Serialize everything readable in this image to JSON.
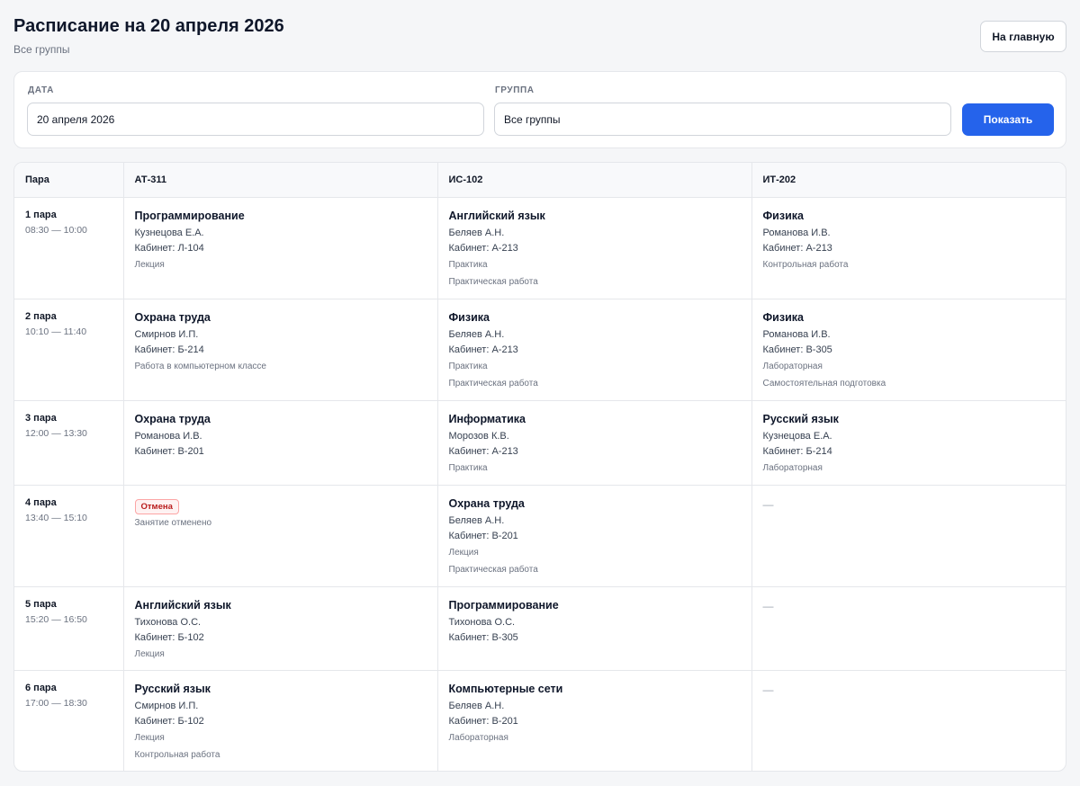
{
  "header": {
    "title": "Расписание на 20 апреля 2026",
    "subtitle": "Все группы",
    "home_label": "На главную"
  },
  "filters": {
    "date_label": "ДАТА",
    "date_value": "20 апреля 2026",
    "group_label": "ГРУППА",
    "group_value": "Все группы",
    "show_label": "Показать"
  },
  "table": {
    "columns": [
      "Пара",
      "АТ-311",
      "ИС-102",
      "ИТ-202"
    ],
    "rows": [
      {
        "pair": "1 пара",
        "time": "08:30 — 10:00",
        "cells": [
          {
            "subject": "Программирование",
            "teacher": "Кузнецова Е.А.",
            "room": "Кабинет: Л-104",
            "notes": [
              "Лекция"
            ]
          },
          {
            "subject": "Английский язык",
            "teacher": "Беляев А.Н.",
            "room": "Кабинет: А-213",
            "notes": [
              "Практика",
              "Практическая работа"
            ]
          },
          {
            "subject": "Физика",
            "teacher": "Романова И.В.",
            "room": "Кабинет: А-213",
            "notes": [
              "Контрольная работа"
            ]
          }
        ]
      },
      {
        "pair": "2 пара",
        "time": "10:10 — 11:40",
        "cells": [
          {
            "subject": "Охрана труда",
            "teacher": "Смирнов И.П.",
            "room": "Кабинет: Б-214",
            "notes": [
              "Работа в компьютерном классе"
            ]
          },
          {
            "subject": "Физика",
            "teacher": "Беляев А.Н.",
            "room": "Кабинет: А-213",
            "notes": [
              "Практика",
              "Практическая работа"
            ]
          },
          {
            "subject": "Физика",
            "teacher": "Романова И.В.",
            "room": "Кабинет: В-305",
            "notes": [
              "Лабораторная",
              "Самостоятельная подготовка"
            ]
          }
        ]
      },
      {
        "pair": "3 пара",
        "time": "12:00 — 13:30",
        "cells": [
          {
            "subject": "Охрана труда",
            "teacher": "Романова И.В.",
            "room": "Кабинет: В-201",
            "notes": []
          },
          {
            "subject": "Информатика",
            "teacher": "Морозов К.В.",
            "room": "Кабинет: А-213",
            "notes": [
              "Практика"
            ]
          },
          {
            "subject": "Русский язык",
            "teacher": "Кузнецова Е.А.",
            "room": "Кабинет: Б-214",
            "notes": [
              "Лабораторная"
            ]
          }
        ]
      },
      {
        "pair": "4 пара",
        "time": "13:40 — 15:10",
        "cells": [
          {
            "badge": "Отмена",
            "notes": [
              "Занятие отменено"
            ]
          },
          {
            "subject": "Охрана труда",
            "teacher": "Беляев А.Н.",
            "room": "Кабинет: В-201",
            "notes": [
              "Лекция",
              "Практическая работа"
            ]
          },
          {
            "empty": "—"
          }
        ]
      },
      {
        "pair": "5 пара",
        "time": "15:20 — 16:50",
        "cells": [
          {
            "subject": "Английский язык",
            "teacher": "Тихонова О.С.",
            "room": "Кабинет: Б-102",
            "notes": [
              "Лекция"
            ]
          },
          {
            "subject": "Программирование",
            "teacher": "Тихонова О.С.",
            "room": "Кабинет: В-305",
            "notes": []
          },
          {
            "empty": "—"
          }
        ]
      },
      {
        "pair": "6 пара",
        "time": "17:00 — 18:30",
        "cells": [
          {
            "subject": "Русский язык",
            "teacher": "Смирнов И.П.",
            "room": "Кабинет: Б-102",
            "notes": [
              "Лекция",
              "Контрольная работа"
            ]
          },
          {
            "subject": "Компьютерные сети",
            "teacher": "Беляев А.Н.",
            "room": "Кабинет: В-201",
            "notes": [
              "Лабораторная"
            ]
          },
          {
            "empty": "—"
          }
        ]
      }
    ]
  }
}
